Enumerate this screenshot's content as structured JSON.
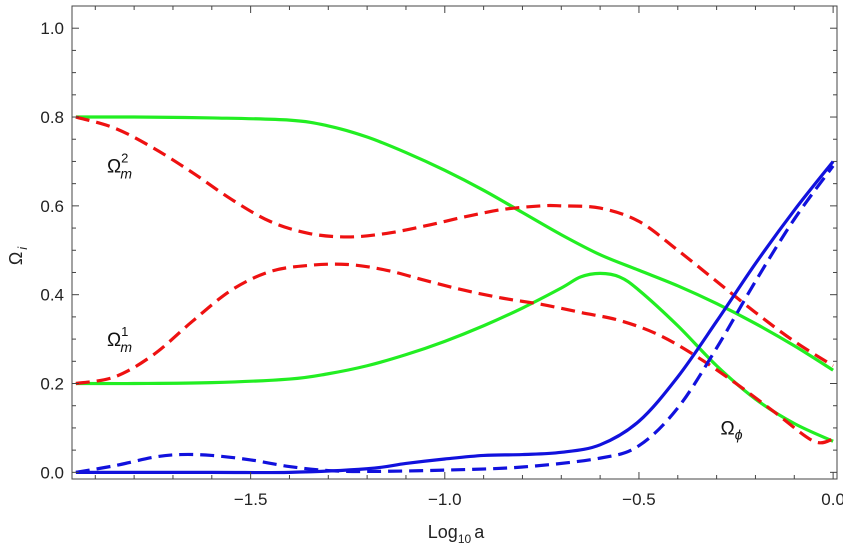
{
  "chart_data": {
    "type": "line",
    "xlabel": "Log",
    "xlabel_sub": "10",
    "xlabel_tail": "a",
    "ylabel": "Ω",
    "ylabel_sub": "i",
    "xlim": [
      -1.96,
      0.01
    ],
    "ylim": [
      -0.015,
      1.05
    ],
    "x_ticks": [
      -1.5,
      -1.0,
      -0.5,
      0.0
    ],
    "x_tick_labels": [
      "−1.5",
      "−1.0",
      "−0.5",
      "0.0"
    ],
    "y_ticks": [
      0.0,
      0.2,
      0.4,
      0.6,
      0.8,
      1.0
    ],
    "y_tick_labels": [
      "0.0",
      "0.2",
      "0.4",
      "0.6",
      "0.8",
      "1.0"
    ],
    "grid": false,
    "colors": {
      "green": "#22ee22",
      "red": "#ee1111",
      "blue": "#1111dd"
    },
    "annotations": [
      {
        "base": "Ω",
        "sub": "m",
        "sup": "2",
        "x": -1.87,
        "y": 0.675
      },
      {
        "base": "Ω",
        "sub": "m",
        "sup": "1",
        "x": -1.87,
        "y": 0.285
      },
      {
        "base": "Ω",
        "sub": "ϕ",
        "sup": "",
        "x": -0.29,
        "y": 0.085
      }
    ],
    "series": [
      {
        "color": "green",
        "dash": false,
        "x": [
          -1.95,
          -1.8,
          -1.6,
          -1.4,
          -1.3,
          -1.2,
          -1.1,
          -1.0,
          -0.9,
          -0.8,
          -0.7,
          -0.6,
          -0.5,
          -0.4,
          -0.3,
          -0.2,
          -0.1,
          0.0
        ],
        "y": [
          0.8,
          0.8,
          0.798,
          0.793,
          0.78,
          0.755,
          0.72,
          0.68,
          0.635,
          0.585,
          0.535,
          0.49,
          0.455,
          0.42,
          0.38,
          0.335,
          0.285,
          0.23
        ]
      },
      {
        "color": "green",
        "dash": false,
        "x": [
          -1.95,
          -1.8,
          -1.6,
          -1.4,
          -1.3,
          -1.2,
          -1.1,
          -1.0,
          -0.9,
          -0.8,
          -0.7,
          -0.65,
          -0.6,
          -0.55,
          -0.5,
          -0.4,
          -0.3,
          -0.2,
          -0.1,
          0.0
        ],
        "y": [
          0.2,
          0.2,
          0.202,
          0.21,
          0.222,
          0.24,
          0.265,
          0.295,
          0.33,
          0.37,
          0.415,
          0.44,
          0.448,
          0.44,
          0.41,
          0.33,
          0.24,
          0.165,
          0.11,
          0.07
        ]
      },
      {
        "color": "red",
        "dash": true,
        "x": [
          -1.95,
          -1.85,
          -1.75,
          -1.65,
          -1.55,
          -1.45,
          -1.35,
          -1.25,
          -1.15,
          -1.05,
          -0.95,
          -0.85,
          -0.75,
          -0.7,
          -0.6,
          -0.5,
          -0.4,
          -0.3,
          -0.2,
          -0.1,
          0.0
        ],
        "y": [
          0.8,
          0.775,
          0.73,
          0.675,
          0.615,
          0.565,
          0.538,
          0.53,
          0.538,
          0.555,
          0.575,
          0.592,
          0.6,
          0.6,
          0.595,
          0.565,
          0.5,
          0.43,
          0.36,
          0.295,
          0.24
        ]
      },
      {
        "color": "red",
        "dash": true,
        "x": [
          -1.95,
          -1.85,
          -1.75,
          -1.65,
          -1.55,
          -1.45,
          -1.35,
          -1.25,
          -1.15,
          -1.05,
          -0.95,
          -0.85,
          -0.75,
          -0.65,
          -0.55,
          -0.45,
          -0.35,
          -0.25,
          -0.15,
          -0.05,
          0.0
        ],
        "y": [
          0.2,
          0.215,
          0.265,
          0.34,
          0.41,
          0.452,
          0.466,
          0.468,
          0.455,
          0.432,
          0.41,
          0.392,
          0.378,
          0.36,
          0.342,
          0.31,
          0.26,
          0.2,
          0.135,
          0.07,
          0.075
        ]
      },
      {
        "color": "blue",
        "dash": false,
        "x": [
          -1.95,
          -1.6,
          -1.4,
          -1.2,
          -1.1,
          -1.0,
          -0.9,
          -0.8,
          -0.7,
          -0.6,
          -0.5,
          -0.4,
          -0.3,
          -0.2,
          -0.1,
          0.0
        ],
        "y": [
          0.0,
          0.0,
          0.0,
          0.008,
          0.02,
          0.03,
          0.038,
          0.04,
          0.045,
          0.062,
          0.115,
          0.215,
          0.34,
          0.47,
          0.59,
          0.7
        ]
      },
      {
        "color": "blue",
        "dash": true,
        "x": [
          -1.95,
          -1.85,
          -1.75,
          -1.68,
          -1.6,
          -1.5,
          -1.4,
          -1.3,
          -1.2,
          -1.0,
          -0.8,
          -0.6,
          -0.5,
          -0.4,
          -0.3,
          -0.2,
          -0.1,
          0.0
        ],
        "y": [
          0.0,
          0.015,
          0.034,
          0.04,
          0.038,
          0.028,
          0.013,
          0.004,
          0.002,
          0.005,
          0.012,
          0.032,
          0.06,
          0.145,
          0.28,
          0.43,
          0.57,
          0.69
        ]
      }
    ]
  }
}
